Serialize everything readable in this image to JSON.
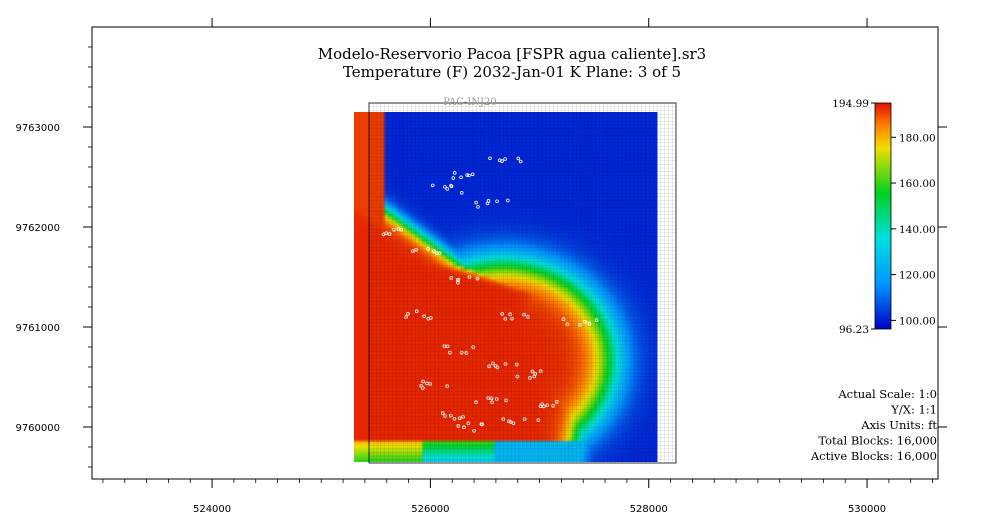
{
  "chart_data": {
    "type": "heatmap",
    "title": "Modelo-Reservorio Pacoa [FSPR agua caliente].sr3",
    "subtitle": "Temperature (F)   2032-Jan-01   K Plane: 3 of 5",
    "xlim": [
      522900,
      530650
    ],
    "ylim": [
      9759480,
      9764000
    ],
    "x_ticks": [
      524000,
      526000,
      528000,
      530000
    ],
    "x_tick_labels": [
      "524000",
      "526000",
      "528000",
      "530000"
    ],
    "y_ticks": [
      9760000,
      9761000,
      9762000,
      9763000
    ],
    "y_tick_labels": [
      "9760000",
      "9761000",
      "9762000",
      "9763000"
    ],
    "grid_extent": {
      "x": [
        525300,
        528080
      ],
      "y": [
        9759650,
        9763150
      ]
    },
    "grid_cells": {
      "nx": 80,
      "ny": 100
    },
    "colorbar": {
      "min": 96.23,
      "max": 194.99,
      "min_label": "96.23",
      "max_label": "194.99",
      "ticks": [
        100,
        120,
        140,
        160,
        180
      ],
      "tick_labels": [
        "100.00",
        "120.00",
        "140.00",
        "160.00",
        "180.00"
      ]
    },
    "well_label": "PAC-INJ20",
    "info": [
      "Actual Scale: 1:0",
      "Y/X: 1:1",
      "Axis Units: ft",
      "Total Blocks: 16,000",
      "Active Blocks: 16,000"
    ]
  }
}
